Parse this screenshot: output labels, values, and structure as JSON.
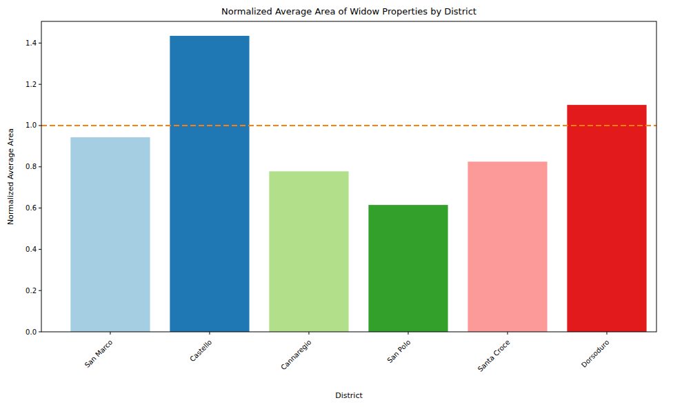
{
  "chart_data": {
    "type": "bar",
    "title": "Normalized Average Area of Widow Properties by District",
    "x_label": "District",
    "y_label": "Normalized Average Area",
    "categories": [
      "San Marco",
      "Castello",
      "Cannaregio",
      "San Polo",
      "Santa Croce",
      "Dorsoduro"
    ],
    "values": [
      0.943,
      1.435,
      0.778,
      0.615,
      0.825,
      1.1
    ],
    "colors": [
      "#a6cee3",
      "#1f78b4",
      "#b2df8a",
      "#33a02c",
      "#fb9a99",
      "#e31a1c"
    ],
    "ylim": [
      0,
      1.505
    ],
    "yticks": [
      {
        "value": 0,
        "label": "0.0"
      },
      0.2,
      0.4,
      0.6,
      0.8,
      {
        "value": 1,
        "label": "1.0"
      },
      1.2,
      1.4
    ],
    "grid": false,
    "reference_line": {
      "value": 1,
      "color": "#ff7f0e",
      "line_style": "dashed"
    }
  }
}
